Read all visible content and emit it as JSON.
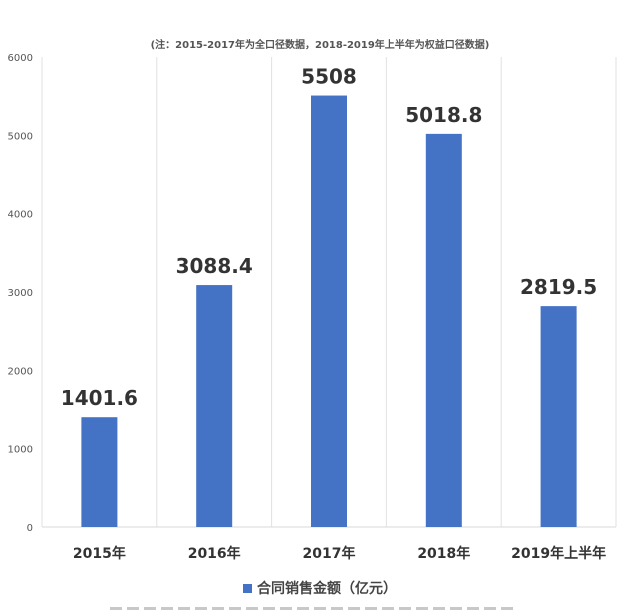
{
  "chart_data": {
    "type": "bar",
    "note": "(注：2015-2017年为全口径数据，2018-2019年上半年为权益口径数据)",
    "categories": [
      "2015年",
      "2016年",
      "2017年",
      "2018年",
      "2019年上半年"
    ],
    "series": [
      {
        "name": "合同销售金额（亿元）",
        "values": [
          1401.6,
          3088.4,
          5508,
          5018.8,
          2819.5
        ]
      }
    ],
    "data_labels": [
      "1401.6",
      "3088.4",
      "5508",
      "5018.8",
      "2819.5"
    ],
    "yticks": [
      0,
      1000,
      2000,
      3000,
      4000,
      5000,
      6000
    ],
    "ylim": [
      0,
      6000
    ],
    "bar_color": "#4472c4",
    "grid": "vertical separators",
    "legend_position": "bottom"
  }
}
